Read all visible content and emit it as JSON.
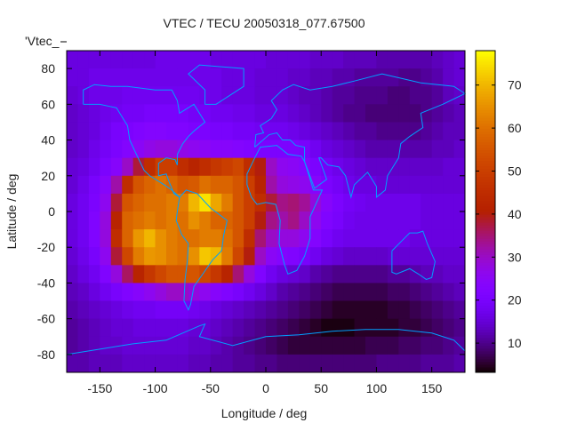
{
  "chart_data": {
    "type": "heatmap",
    "title": "VTEC / TECU 20050318_077.67500",
    "xlabel": "Longitude / deg",
    "ylabel": "Latitude / deg",
    "key_label": "'Vtec_",
    "xlim": [
      -180,
      180
    ],
    "ylim": [
      -90,
      90
    ],
    "xticks": [
      -150,
      -100,
      -50,
      0,
      50,
      100,
      150
    ],
    "yticks": [
      -80,
      -60,
      -40,
      -20,
      0,
      20,
      40,
      60,
      80
    ],
    "cbrange": [
      3.2,
      78
    ],
    "cbticks": [
      10,
      20,
      30,
      40,
      50,
      60,
      70
    ],
    "grid_lon_start": -180,
    "grid_lat_start": 90,
    "grid_step": 10,
    "values": [
      [
        16,
        16,
        16,
        16,
        16,
        16,
        16,
        16,
        17,
        17,
        17,
        17,
        17,
        16,
        16,
        16,
        16,
        16,
        15,
        15,
        15,
        15,
        14,
        14,
        14,
        13,
        13,
        13,
        12,
        12,
        12,
        12,
        12,
        13,
        14,
        15
      ],
      [
        16,
        16,
        17,
        17,
        17,
        17,
        17,
        17,
        17,
        17,
        17,
        17,
        17,
        17,
        16,
        16,
        16,
        15,
        15,
        15,
        14,
        14,
        13,
        13,
        12,
        12,
        11,
        11,
        11,
        11,
        10,
        10,
        11,
        12,
        14,
        15
      ],
      [
        15,
        16,
        17,
        17,
        17,
        18,
        18,
        18,
        18,
        18,
        18,
        18,
        17,
        17,
        16,
        16,
        16,
        15,
        15,
        15,
        14,
        13,
        13,
        12,
        11,
        11,
        10,
        10,
        10,
        9,
        9,
        10,
        10,
        11,
        13,
        14
      ],
      [
        14,
        15,
        16,
        17,
        18,
        19,
        19,
        20,
        20,
        20,
        20,
        19,
        19,
        18,
        18,
        17,
        17,
        16,
        16,
        16,
        15,
        14,
        13,
        12,
        11,
        10,
        10,
        9,
        9,
        9,
        9,
        9,
        10,
        11,
        12,
        13
      ],
      [
        14,
        15,
        16,
        18,
        20,
        21,
        22,
        23,
        23,
        22,
        22,
        21,
        21,
        20,
        20,
        19,
        19,
        18,
        18,
        18,
        17,
        16,
        15,
        14,
        13,
        12,
        11,
        11,
        10,
        10,
        10,
        10,
        11,
        12,
        13,
        13
      ],
      [
        14,
        15,
        17,
        19,
        21,
        23,
        25,
        27,
        28,
        28,
        27,
        26,
        25,
        24,
        24,
        23,
        22,
        21,
        21,
        21,
        21,
        20,
        18,
        16,
        15,
        14,
        13,
        12,
        12,
        12,
        12,
        12,
        12,
        13,
        13,
        14
      ],
      [
        15,
        16,
        18,
        21,
        24,
        30,
        38,
        45,
        50,
        50,
        45,
        42,
        45,
        48,
        50,
        52,
        45,
        40,
        30,
        26,
        25,
        23,
        21,
        19,
        17,
        16,
        15,
        14,
        14,
        14,
        14,
        14,
        14,
        14,
        15,
        15
      ],
      [
        15,
        17,
        20,
        24,
        32,
        45,
        55,
        58,
        60,
        58,
        55,
        56,
        60,
        58,
        58,
        55,
        50,
        42,
        32,
        28,
        27,
        26,
        24,
        21,
        19,
        17,
        16,
        16,
        15,
        15,
        15,
        15,
        15,
        15,
        15,
        15
      ],
      [
        16,
        18,
        21,
        26,
        38,
        55,
        58,
        60,
        60,
        62,
        62,
        70,
        75,
        68,
        62,
        55,
        50,
        45,
        38,
        34,
        35,
        33,
        28,
        24,
        21,
        19,
        18,
        17,
        17,
        17,
        17,
        17,
        16,
        16,
        16,
        16
      ],
      [
        16,
        18,
        22,
        28,
        42,
        58,
        60,
        62,
        60,
        62,
        60,
        65,
        62,
        58,
        58,
        55,
        50,
        40,
        34,
        32,
        34,
        30,
        26,
        22,
        20,
        18,
        17,
        17,
        17,
        17,
        17,
        17,
        16,
        16,
        16,
        16
      ],
      [
        16,
        18,
        22,
        28,
        45,
        58,
        66,
        70,
        65,
        62,
        60,
        60,
        62,
        62,
        60,
        55,
        45,
        35,
        30,
        28,
        28,
        26,
        23,
        20,
        18,
        17,
        17,
        17,
        17,
        17,
        17,
        16,
        16,
        16,
        16,
        16
      ],
      [
        15,
        17,
        20,
        26,
        38,
        52,
        62,
        66,
        65,
        62,
        60,
        65,
        72,
        70,
        62,
        52,
        40,
        30,
        25,
        23,
        22,
        20,
        18,
        16,
        15,
        14,
        14,
        14,
        14,
        15,
        15,
        15,
        15,
        15,
        15,
        15
      ],
      [
        14,
        16,
        18,
        22,
        28,
        36,
        42,
        48,
        52,
        55,
        55,
        55,
        52,
        48,
        42,
        35,
        28,
        22,
        18,
        16,
        15,
        14,
        12,
        11,
        10,
        10,
        10,
        10,
        10,
        11,
        11,
        12,
        13,
        13,
        14,
        14
      ],
      [
        13,
        14,
        16,
        18,
        20,
        22,
        24,
        26,
        28,
        30,
        30,
        28,
        26,
        24,
        22,
        20,
        18,
        16,
        14,
        12,
        11,
        10,
        9,
        8,
        7,
        7,
        7,
        7,
        7,
        8,
        8,
        9,
        10,
        11,
        12,
        13
      ],
      [
        12,
        13,
        14,
        15,
        16,
        17,
        18,
        18,
        19,
        19,
        19,
        18,
        17,
        16,
        15,
        14,
        13,
        12,
        11,
        10,
        9,
        8,
        7,
        6,
        5,
        5,
        5,
        5,
        5,
        6,
        6,
        7,
        8,
        9,
        10,
        11
      ],
      [
        11,
        12,
        13,
        14,
        15,
        15,
        16,
        16,
        16,
        16,
        16,
        15,
        15,
        14,
        13,
        12,
        11,
        10,
        9,
        8,
        7,
        6,
        5,
        4,
        4,
        4,
        5,
        5,
        5,
        5,
        6,
        6,
        7,
        8,
        9,
        10
      ],
      [
        11,
        12,
        13,
        14,
        14,
        15,
        15,
        15,
        15,
        15,
        15,
        14,
        14,
        13,
        12,
        11,
        10,
        9,
        8,
        7,
        6,
        6,
        6,
        6,
        6,
        6,
        6,
        7,
        7,
        7,
        8,
        8,
        9,
        9,
        10,
        11
      ],
      [
        12,
        12,
        13,
        13,
        13,
        14,
        14,
        14,
        14,
        14,
        14,
        13,
        13,
        12,
        12,
        11,
        11,
        10,
        10,
        9,
        9,
        9,
        9,
        9,
        9,
        9,
        9,
        9,
        10,
        10,
        10,
        10,
        11,
        11,
        11,
        12
      ]
    ],
    "coastline_color": "#00a0ff",
    "coastlines": [
      [
        [
          -165,
          60
        ],
        [
          -165,
          68
        ],
        [
          -155,
          71
        ],
        [
          -140,
          70
        ],
        [
          -125,
          70
        ],
        [
          -100,
          68
        ],
        [
          -85,
          68
        ],
        [
          -80,
          62
        ],
        [
          -78,
          55
        ],
        [
          -65,
          60
        ],
        [
          -60,
          55
        ],
        [
          -55,
          50
        ],
        [
          -65,
          45
        ],
        [
          -70,
          42
        ],
        [
          -75,
          38
        ],
        [
          -80,
          32
        ],
        [
          -80,
          26
        ],
        [
          -82,
          29
        ],
        [
          -90,
          30
        ],
        [
          -97,
          27
        ],
        [
          -97,
          20
        ],
        [
          -90,
          21
        ],
        [
          -87,
          16
        ],
        [
          -83,
          10
        ],
        [
          -78,
          8
        ],
        [
          -85,
          12
        ],
        [
          -92,
          15
        ],
        [
          -105,
          20
        ],
        [
          -110,
          23
        ],
        [
          -117,
          32
        ],
        [
          -123,
          40
        ],
        [
          -125,
          48
        ],
        [
          -135,
          58
        ],
        [
          -150,
          60
        ],
        [
          -165,
          60
        ]
      ],
      [
        [
          -78,
          8
        ],
        [
          -72,
          12
        ],
        [
          -62,
          10
        ],
        [
          -50,
          2
        ],
        [
          -35,
          -5
        ],
        [
          -38,
          -13
        ],
        [
          -40,
          -22
        ],
        [
          -48,
          -27
        ],
        [
          -57,
          -35
        ],
        [
          -65,
          -42
        ],
        [
          -68,
          -52
        ],
        [
          -70,
          -55
        ],
        [
          -74,
          -50
        ],
        [
          -73,
          -38
        ],
        [
          -71,
          -28
        ],
        [
          -70,
          -18
        ],
        [
          -76,
          -13
        ],
        [
          -81,
          -5
        ],
        [
          -80,
          0
        ],
        [
          -78,
          8
        ]
      ],
      [
        [
          -55,
          60
        ],
        [
          -45,
          60
        ],
        [
          -20,
          70
        ],
        [
          -20,
          80
        ],
        [
          -60,
          82
        ],
        [
          -70,
          77
        ],
        [
          -55,
          68
        ],
        [
          -55,
          60
        ]
      ],
      [
        [
          -17,
          15
        ],
        [
          -17,
          21
        ],
        [
          -10,
          30
        ],
        [
          -5,
          36
        ],
        [
          10,
          37
        ],
        [
          20,
          32
        ],
        [
          32,
          31
        ],
        [
          35,
          28
        ],
        [
          43,
          12
        ],
        [
          51,
          12
        ],
        [
          40,
          -3
        ],
        [
          40,
          -15
        ],
        [
          35,
          -25
        ],
        [
          28,
          -33
        ],
        [
          20,
          -35
        ],
        [
          17,
          -30
        ],
        [
          12,
          -18
        ],
        [
          13,
          -5
        ],
        [
          9,
          4
        ],
        [
          0,
          5
        ],
        [
          -8,
          4
        ],
        [
          -13,
          8
        ],
        [
          -17,
          15
        ]
      ],
      [
        [
          -10,
          36
        ],
        [
          -9,
          43
        ],
        [
          -2,
          44
        ],
        [
          -5,
          48
        ],
        [
          5,
          52
        ],
        [
          10,
          57
        ],
        [
          5,
          62
        ],
        [
          15,
          68
        ],
        [
          25,
          71
        ],
        [
          40,
          68
        ],
        [
          60,
          70
        ],
        [
          80,
          73
        ],
        [
          105,
          77
        ],
        [
          140,
          72
        ],
        [
          170,
          70
        ],
        [
          180,
          66
        ],
        [
          160,
          60
        ],
        [
          140,
          55
        ],
        [
          142,
          47
        ],
        [
          130,
          42
        ],
        [
          122,
          38
        ],
        [
          120,
          30
        ],
        [
          110,
          20
        ],
        [
          108,
          12
        ],
        [
          100,
          8
        ],
        [
          100,
          14
        ],
        [
          92,
          22
        ],
        [
          80,
          15
        ],
        [
          77,
          8
        ],
        [
          72,
          20
        ],
        [
          66,
          25
        ],
        [
          56,
          26
        ],
        [
          50,
          30
        ],
        [
          48,
          30
        ],
        [
          55,
          18
        ],
        [
          44,
          13
        ],
        [
          35,
          28
        ],
        [
          35,
          36
        ],
        [
          27,
          37
        ],
        [
          22,
          40
        ],
        [
          15,
          40
        ],
        [
          10,
          44
        ],
        [
          3,
          43
        ],
        [
          -10,
          36
        ]
      ],
      [
        [
          114,
          -22
        ],
        [
          114,
          -34
        ],
        [
          118,
          -35
        ],
        [
          130,
          -32
        ],
        [
          138,
          -35
        ],
        [
          145,
          -38
        ],
        [
          150,
          -37
        ],
        [
          153,
          -28
        ],
        [
          146,
          -18
        ],
        [
          142,
          -11
        ],
        [
          137,
          -12
        ],
        [
          130,
          -12
        ],
        [
          122,
          -17
        ],
        [
          114,
          -22
        ]
      ],
      [
        [
          -180,
          -80
        ],
        [
          -150,
          -77
        ],
        [
          -120,
          -74
        ],
        [
          -90,
          -72
        ],
        [
          -60,
          -64
        ],
        [
          -55,
          -63
        ],
        [
          -60,
          -70
        ],
        [
          -30,
          -75
        ],
        [
          0,
          -70
        ],
        [
          30,
          -69
        ],
        [
          60,
          -67
        ],
        [
          90,
          -66
        ],
        [
          120,
          -66
        ],
        [
          150,
          -68
        ],
        [
          170,
          -72
        ],
        [
          180,
          -78
        ]
      ]
    ]
  }
}
